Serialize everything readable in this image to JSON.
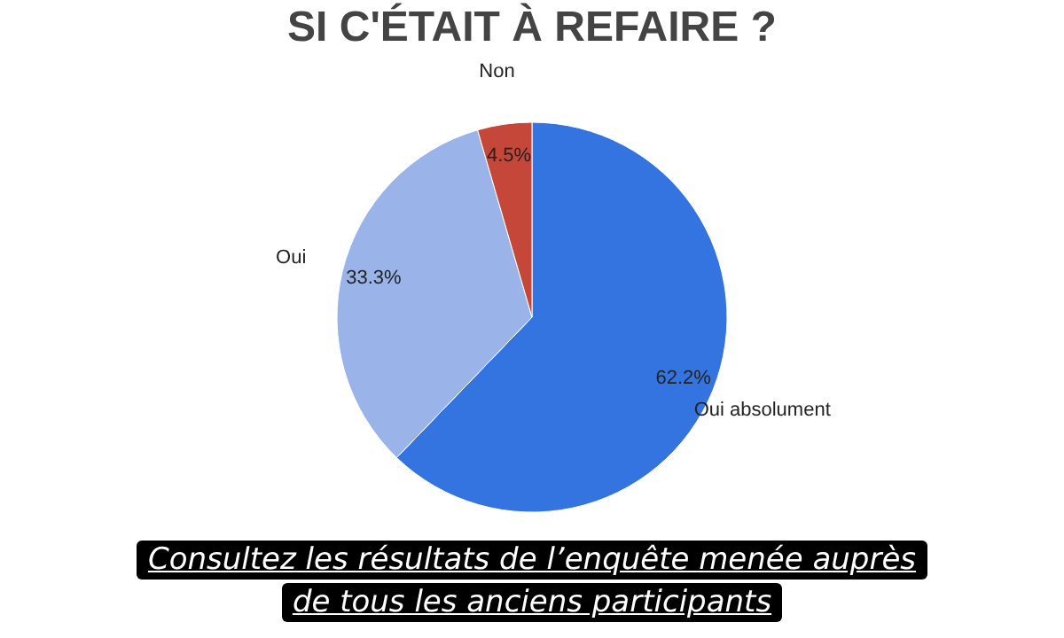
{
  "chart_data": {
    "type": "pie",
    "title": "SI C'ÉTAIT À REFAIRE ?",
    "categories": [
      "Oui absolument",
      "Oui",
      "Non"
    ],
    "values": [
      62.2,
      33.3,
      4.5
    ],
    "colors": [
      "#3474e0",
      "#9ab4e9",
      "#c5473a"
    ],
    "value_labels": [
      "62.2%",
      "33.3%",
      "4.5%"
    ],
    "annotations": [
      "Consultez les résultats de l’enquête menée auprès",
      "de tous les anciens participants"
    ]
  }
}
